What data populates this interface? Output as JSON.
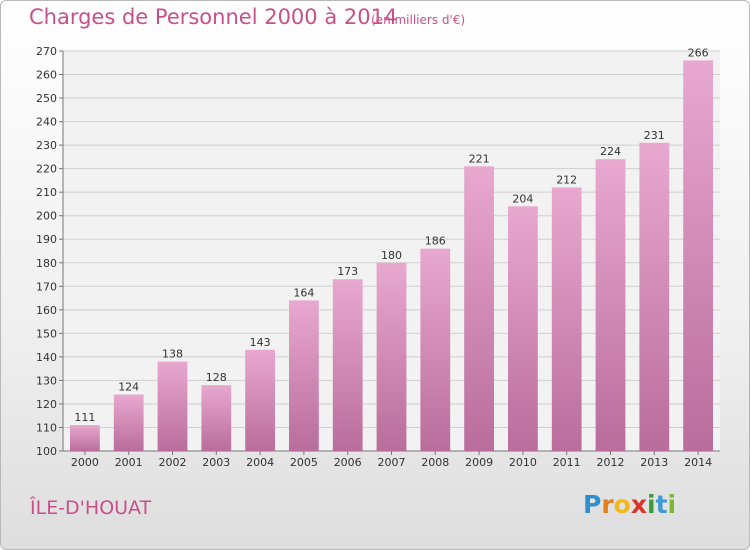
{
  "title": "Charges de Personnel 2000 à 2014",
  "subtitle": "(en milliers d'€)",
  "commune": "ÎLE-D'HOUAT",
  "logo": {
    "letters": [
      "P",
      "r",
      "o",
      "x",
      "i",
      "t",
      "i"
    ],
    "colors": [
      "#2e8fd0",
      "#e57f1c",
      "#f0b81a",
      "#d9352a",
      "#3b9e3b",
      "#3f9ad6",
      "#7cb83a"
    ]
  },
  "colors": {
    "bar_top": "#e8a8cf",
    "bar_bottom": "#b96d9c",
    "text": "#c8508a"
  },
  "chart_data": {
    "type": "bar",
    "title": "Charges de Personnel 2000 à 2014",
    "subtitle": "(en milliers d'€)",
    "categories": [
      "2000",
      "2001",
      "2002",
      "2003",
      "2004",
      "2005",
      "2006",
      "2007",
      "2008",
      "2009",
      "2010",
      "2011",
      "2012",
      "2013",
      "2014"
    ],
    "values": [
      111,
      124,
      138,
      128,
      143,
      164,
      173,
      180,
      186,
      221,
      204,
      212,
      224,
      231,
      266
    ],
    "ylim": [
      100,
      270
    ],
    "yticks": [
      100,
      110,
      120,
      130,
      140,
      150,
      160,
      170,
      180,
      190,
      200,
      210,
      220,
      230,
      240,
      250,
      260,
      270
    ],
    "grid": true
  }
}
